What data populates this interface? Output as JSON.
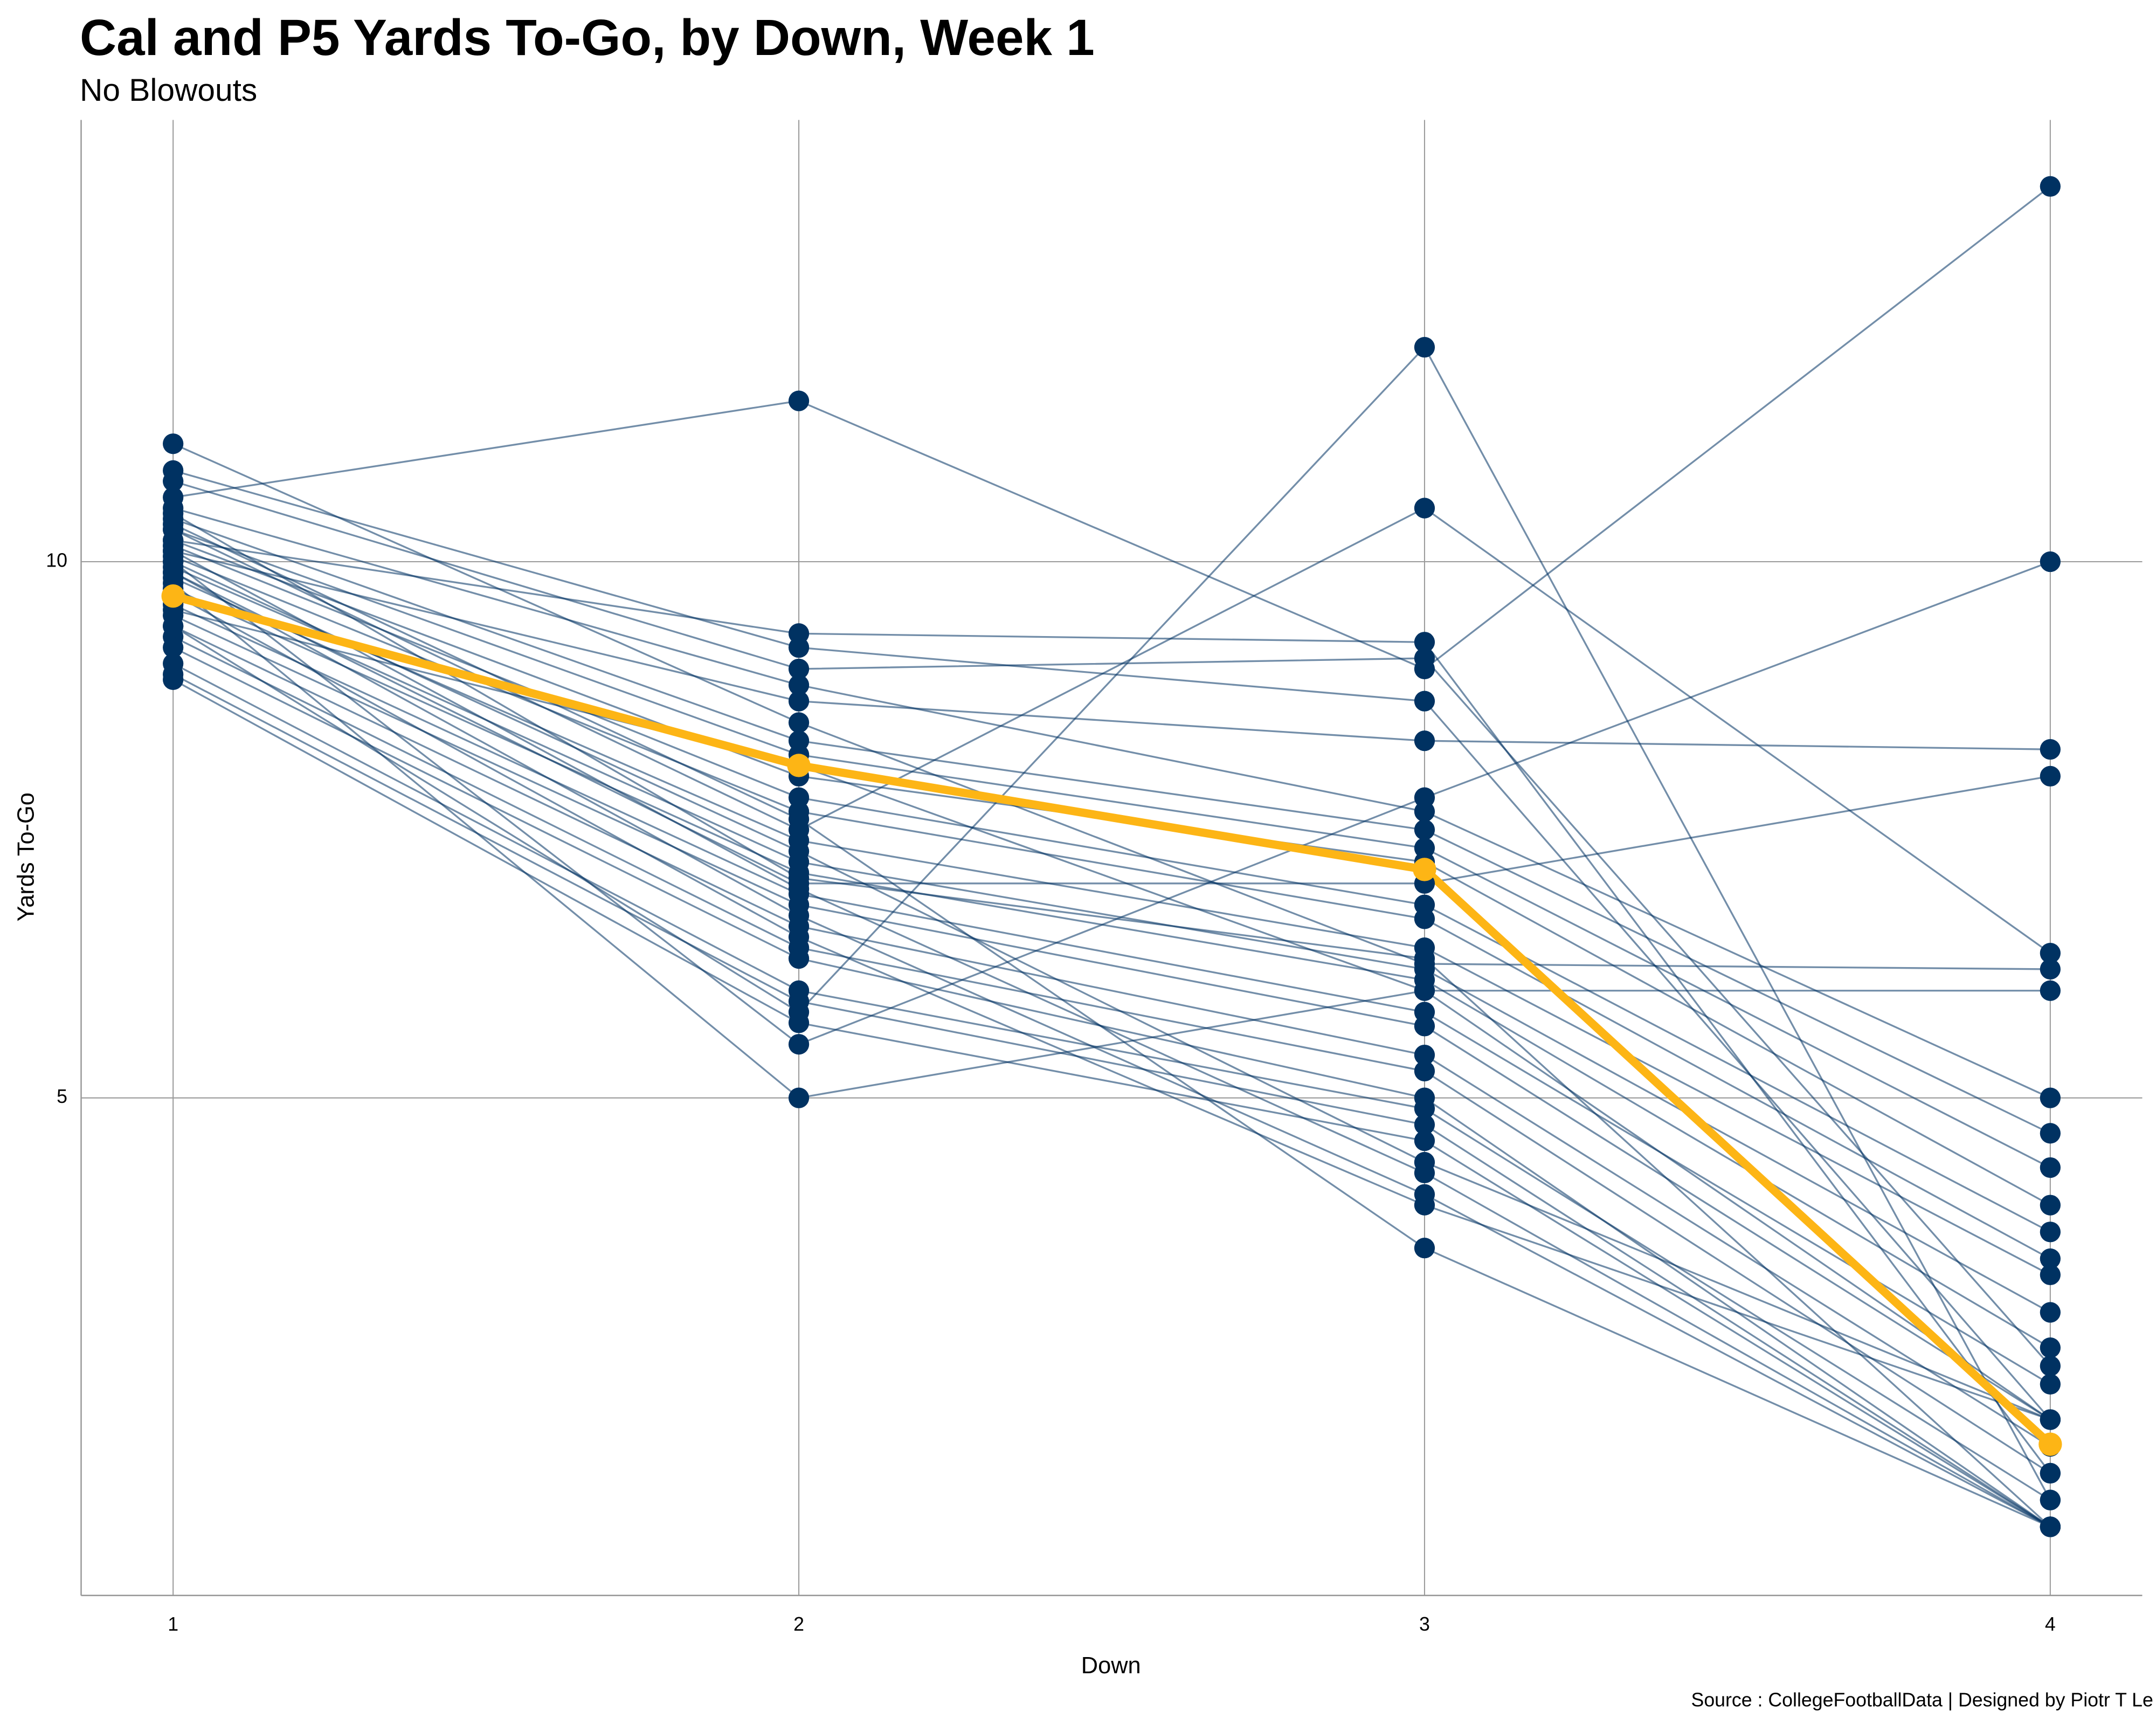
{
  "chart_data": {
    "type": "line",
    "title": "Cal and P5 Yards To-Go, by Down, Week 1",
    "subtitle": "No Blowouts",
    "x_label": "Down",
    "y_label": "Yards To-Go",
    "caption": "Source : CollegeFootballData | Designed by Piotr T Le",
    "x": [
      1,
      2,
      3,
      4
    ],
    "xlim": [
      0.853,
      4.147
    ],
    "xticks": [
      1,
      2,
      3,
      4
    ],
    "ylim": [
      0.36,
      14.12
    ],
    "yticks": [
      5,
      10
    ],
    "grid": true,
    "series": [
      {
        "color": "#003262",
        "values": [
          10.6,
          11.5,
          9.0,
          13.5
        ]
      },
      {
        "color": "#003262",
        "values": [
          10.3,
          7.5,
          10.5,
          6.35
        ]
      },
      {
        "color": "#003262",
        "values": [
          9.4,
          5.8,
          12.0,
          1.25
        ]
      },
      {
        "color": "#003262",
        "values": [
          10.2,
          9.33,
          9.25,
          1.5
        ]
      },
      {
        "color": "#003262",
        "values": [
          10.0,
          5.5,
          7.8,
          10.0
        ]
      },
      {
        "color": "#003262",
        "values": [
          9.8,
          5.0,
          6.0,
          6.0
        ]
      },
      {
        "color": "#003262",
        "values": [
          10.1,
          8.7,
          8.33,
          8.25
        ]
      },
      {
        "color": "#003262",
        "values": [
          9.9,
          7.0,
          7.0,
          8.0
        ]
      },
      {
        "color": "#003262",
        "values": [
          11.1,
          8.5,
          6.25,
          6.2
        ]
      },
      {
        "color": "#003262",
        "values": [
          10.85,
          9.2,
          8.7,
          2.0
        ]
      },
      {
        "color": "#003262",
        "values": [
          10.75,
          9.0,
          9.1,
          2.5
        ]
      },
      {
        "color": "#003262",
        "values": [
          10.5,
          8.85,
          7.67,
          5.0
        ]
      },
      {
        "color": "#003262",
        "values": [
          10.4,
          8.33,
          7.5,
          4.67
        ]
      },
      {
        "color": "#003262",
        "values": [
          10.3,
          8.2,
          7.33,
          4.35
        ]
      },
      {
        "color": "#003262",
        "values": [
          10.2,
          8.0,
          7.2,
          4.0
        ]
      },
      {
        "color": "#003262",
        "values": [
          10.15,
          7.8,
          6.8,
          3.75
        ]
      },
      {
        "color": "#003262",
        "values": [
          10.05,
          7.67,
          6.67,
          3.5
        ]
      },
      {
        "color": "#003262",
        "values": [
          9.95,
          7.4,
          6.4,
          3.35
        ]
      },
      {
        "color": "#003262",
        "values": [
          9.85,
          7.2,
          6.2,
          3.0
        ]
      },
      {
        "color": "#003262",
        "values": [
          9.75,
          7.1,
          6.1,
          2.67
        ]
      },
      {
        "color": "#003262",
        "values": [
          9.6,
          6.9,
          5.8,
          2.33
        ]
      },
      {
        "color": "#003262",
        "values": [
          9.5,
          6.8,
          5.67,
          2.0
        ]
      },
      {
        "color": "#003262",
        "values": [
          9.4,
          6.6,
          5.4,
          1.75
        ]
      },
      {
        "color": "#003262",
        "values": [
          9.3,
          6.4,
          5.25,
          1.5
        ]
      },
      {
        "color": "#003262",
        "values": [
          9.2,
          6.3,
          5.0,
          1.0
        ]
      },
      {
        "color": "#003262",
        "values": [
          9.05,
          6.0,
          4.9,
          1.25
        ]
      },
      {
        "color": "#003262",
        "values": [
          8.95,
          5.9,
          4.75,
          1.0
        ]
      },
      {
        "color": "#003262",
        "values": [
          8.9,
          5.7,
          4.6,
          1.0
        ]
      },
      {
        "color": "#003262",
        "values": [
          10.0,
          7.3,
          4.4,
          2.0
        ]
      },
      {
        "color": "#003262",
        "values": [
          10.1,
          6.95,
          4.3,
          1.0
        ]
      },
      {
        "color": "#003262",
        "values": [
          9.9,
          6.7,
          4.1,
          1.0
        ]
      },
      {
        "color": "#003262",
        "values": [
          9.7,
          6.5,
          4.0,
          2.0
        ]
      },
      {
        "color": "#003262",
        "values": [
          10.35,
          7.6,
          3.6,
          1.0
        ]
      },
      {
        "color": "#003262",
        "values": [
          9.55,
          8.1,
          6.0,
          2.0
        ]
      },
      {
        "color": "#003262",
        "values": [
          10.45,
          7.05,
          6.3,
          1.0
        ]
      },
      {
        "color": "#fdb515",
        "values": [
          9.68,
          8.1,
          7.13,
          1.77
        ]
      }
    ]
  }
}
